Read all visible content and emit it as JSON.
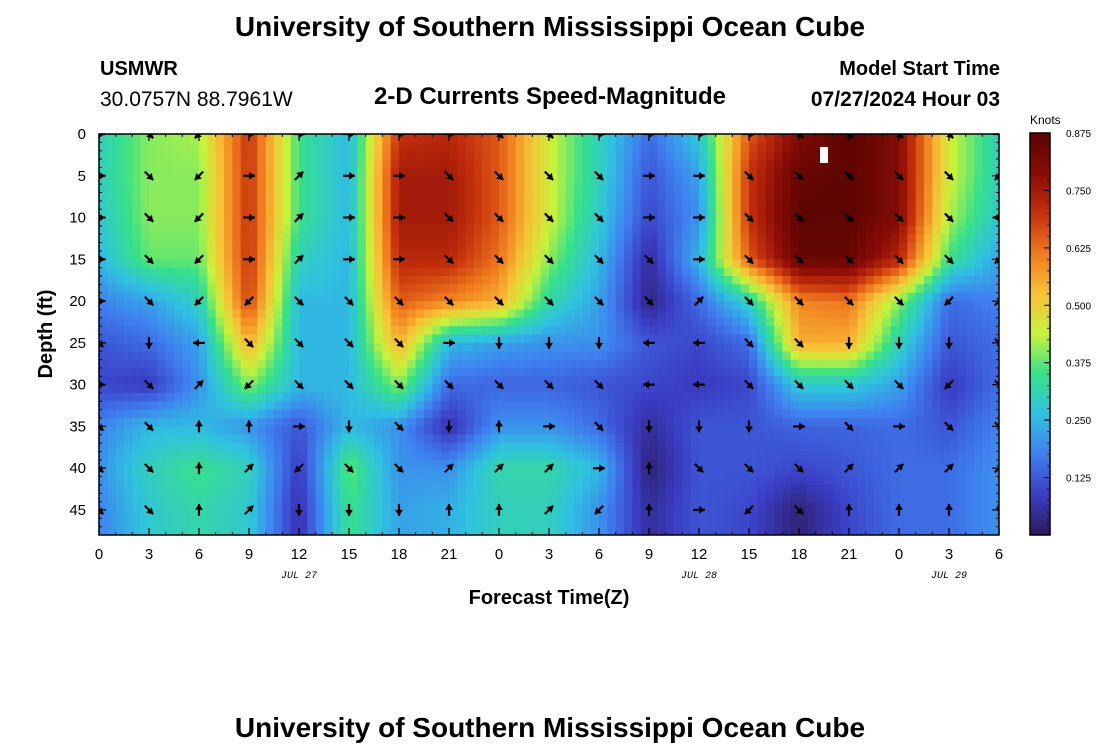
{
  "header": {
    "title": "University of Southern Mississippi Ocean Cube",
    "station": "USMWR",
    "coords": "30.0757N  88.7961W",
    "chart_title": "2-D Currents Speed-Magnitude",
    "model_label": "Model Start Time",
    "model_time": "07/27/2024 Hour 03"
  },
  "footer": {
    "title": "University of Southern Mississippi Ocean Cube"
  },
  "colors": {
    "scale": [
      "#2c1a5e",
      "#3b3ec4",
      "#3f7ff0",
      "#2fc2e0",
      "#35e08a",
      "#c7f23a",
      "#f7c236",
      "#f07a1e",
      "#c5300c",
      "#8a0c06",
      "#5a0502"
    ],
    "arrow": "#000000",
    "marker": "#ffffff"
  },
  "chart_data": {
    "type": "heatmap",
    "title": "2-D Currents Speed-Magnitude",
    "xlabel": "Forecast Time(Z)",
    "ylabel": "Depth (ft)",
    "x_hours": [
      0,
      3,
      6,
      9,
      12,
      15,
      18,
      21,
      24,
      27,
      30,
      33,
      36,
      39,
      42,
      45,
      48,
      51,
      54
    ],
    "x_tick_labels": [
      "0",
      "3",
      "6",
      "9",
      "12",
      "15",
      "18",
      "21",
      "0",
      "3",
      "6",
      "9",
      "12",
      "15",
      "18",
      "21",
      "0",
      "3",
      "6"
    ],
    "date_labels": [
      {
        "label": "JUL 27",
        "hour": 12
      },
      {
        "label": "JUL 28",
        "hour": 36
      },
      {
        "label": "JUL 29",
        "hour": 51
      }
    ],
    "xlim": [
      0,
      54
    ],
    "y_depths": [
      0,
      5,
      10,
      15,
      20,
      25,
      30,
      35,
      40,
      45
    ],
    "ylim": [
      0,
      48
    ],
    "colorbar": {
      "unit": "Knots",
      "range": [
        0,
        0.875
      ],
      "tick_labels": [
        "0.875",
        "0.750",
        "0.625",
        "0.500",
        "0.375",
        "0.250",
        "0.125"
      ],
      "tick_values": [
        0.875,
        0.75,
        0.625,
        0.5,
        0.375,
        0.25,
        0.125
      ]
    },
    "speed": [
      [
        0.3,
        0.4,
        0.42,
        0.7,
        0.35,
        0.25,
        0.7,
        0.72,
        0.65,
        0.45,
        0.3,
        0.15,
        0.28,
        0.65,
        0.8,
        0.87,
        0.8,
        0.45,
        0.3
      ],
      [
        0.3,
        0.4,
        0.4,
        0.7,
        0.35,
        0.25,
        0.75,
        0.75,
        0.65,
        0.45,
        0.3,
        0.12,
        0.22,
        0.7,
        0.85,
        0.87,
        0.8,
        0.45,
        0.3
      ],
      [
        0.28,
        0.4,
        0.4,
        0.7,
        0.35,
        0.25,
        0.75,
        0.75,
        0.65,
        0.45,
        0.28,
        0.1,
        0.2,
        0.7,
        0.87,
        0.87,
        0.8,
        0.42,
        0.28
      ],
      [
        0.25,
        0.38,
        0.38,
        0.7,
        0.3,
        0.25,
        0.72,
        0.72,
        0.62,
        0.4,
        0.25,
        0.05,
        0.25,
        0.65,
        0.85,
        0.85,
        0.72,
        0.35,
        0.22
      ],
      [
        0.18,
        0.22,
        0.3,
        0.68,
        0.25,
        0.25,
        0.65,
        0.6,
        0.55,
        0.32,
        0.22,
        0.03,
        0.15,
        0.3,
        0.6,
        0.62,
        0.4,
        0.15,
        0.18
      ],
      [
        0.12,
        0.15,
        0.22,
        0.55,
        0.25,
        0.25,
        0.55,
        0.25,
        0.22,
        0.2,
        0.2,
        0.12,
        0.1,
        0.15,
        0.55,
        0.55,
        0.3,
        0.12,
        0.15
      ],
      [
        0.1,
        0.08,
        0.2,
        0.4,
        0.25,
        0.25,
        0.4,
        0.15,
        0.14,
        0.14,
        0.12,
        0.1,
        0.08,
        0.1,
        0.28,
        0.28,
        0.22,
        0.08,
        0.15
      ],
      [
        0.18,
        0.25,
        0.25,
        0.2,
        0.12,
        0.25,
        0.2,
        0.06,
        0.2,
        0.2,
        0.15,
        0.05,
        0.12,
        0.12,
        0.14,
        0.14,
        0.15,
        0.12,
        0.18
      ],
      [
        0.2,
        0.3,
        0.35,
        0.3,
        0.08,
        0.38,
        0.2,
        0.2,
        0.32,
        0.32,
        0.25,
        0.02,
        0.12,
        0.12,
        0.1,
        0.12,
        0.15,
        0.15,
        0.2
      ],
      [
        0.18,
        0.28,
        0.32,
        0.28,
        0.06,
        0.35,
        0.22,
        0.24,
        0.3,
        0.3,
        0.2,
        0.05,
        0.12,
        0.1,
        0.02,
        0.1,
        0.15,
        0.15,
        0.2
      ]
    ],
    "direction_deg": [
      [
        90,
        135,
        225,
        90,
        90,
        90,
        90,
        90,
        135,
        135,
        90,
        90,
        90,
        90,
        135,
        135,
        135,
        135,
        90
      ],
      [
        90,
        135,
        225,
        90,
        45,
        90,
        90,
        135,
        135,
        135,
        135,
        90,
        90,
        135,
        135,
        135,
        135,
        135,
        225
      ],
      [
        90,
        135,
        225,
        90,
        45,
        90,
        90,
        135,
        135,
        135,
        135,
        90,
        90,
        135,
        135,
        135,
        135,
        135,
        270
      ],
      [
        90,
        135,
        225,
        90,
        45,
        90,
        90,
        135,
        135,
        135,
        135,
        135,
        90,
        135,
        135,
        135,
        135,
        135,
        225
      ],
      [
        90,
        135,
        225,
        225,
        135,
        135,
        135,
        135,
        135,
        135,
        135,
        135,
        45,
        135,
        135,
        135,
        135,
        225,
        45
      ],
      [
        135,
        180,
        270,
        135,
        135,
        135,
        135,
        90,
        180,
        180,
        180,
        270,
        270,
        135,
        135,
        180,
        180,
        180,
        135
      ],
      [
        90,
        135,
        45,
        225,
        135,
        135,
        135,
        135,
        135,
        135,
        135,
        270,
        270,
        135,
        135,
        135,
        135,
        225,
        135
      ],
      [
        135,
        135,
        0,
        0,
        90,
        180,
        135,
        180,
        0,
        90,
        135,
        180,
        180,
        180,
        90,
        135,
        90,
        135,
        135
      ],
      [
        135,
        135,
        0,
        45,
        225,
        135,
        135,
        45,
        45,
        45,
        90,
        0,
        135,
        135,
        135,
        45,
        45,
        45,
        45
      ],
      [
        135,
        135,
        0,
        45,
        180,
        180,
        180,
        0,
        0,
        45,
        225,
        0,
        90,
        225,
        135,
        0,
        0,
        0,
        0
      ]
    ]
  }
}
